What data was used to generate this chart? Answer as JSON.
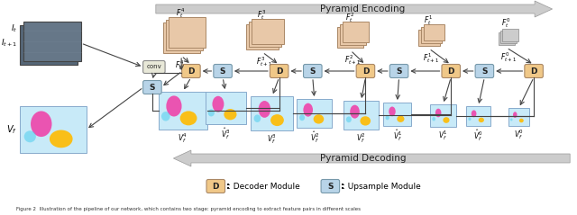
{
  "fig_width": 6.4,
  "fig_height": 2.39,
  "dpi": 100,
  "bg_color": "#ffffff",
  "pyramid_encoding_label": "Pyramid Encoding",
  "pyramid_decoding_label": "Pyramid Decoding",
  "legend_decoder_text": ": Decoder Module",
  "legend_upsample_text": ": Upsample Module",
  "caption": "Figure 2  Illustration of the pipeline of our network, which contains two stage: pyramid encoding to extract feature pairs in different scales",
  "decoder_box_color": "#f0c888",
  "upsample_box_color": "#b8d4e8",
  "conv_box_color": "#e8e8d8",
  "feature_stack_color_warm": "#e8c8a8",
  "feature_stack_color_cool": "#c8d8c8",
  "flow_img_bg": "#c8eaf8",
  "arrow_color": "#444444",
  "enc_arrow_color": "#888888",
  "box_edge_color": "#888888"
}
